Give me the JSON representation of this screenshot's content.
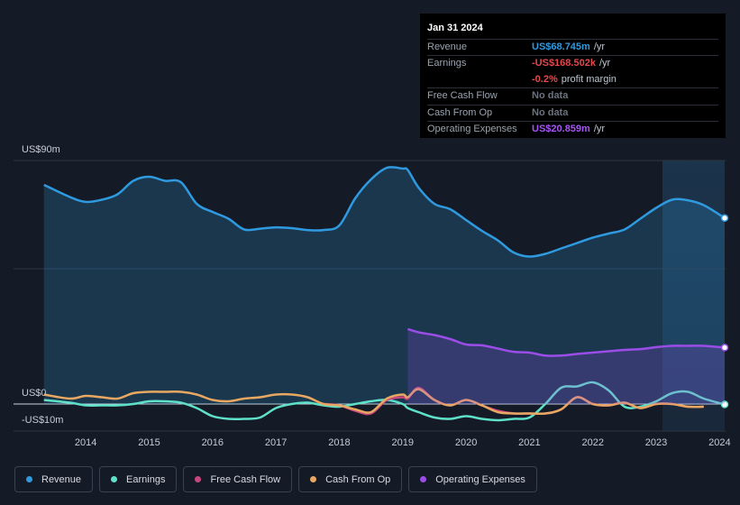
{
  "chart_data": {
    "type": "line",
    "x": [
      2013.34,
      2013.75,
      2014.0,
      2014.25,
      2014.5,
      2014.75,
      2015.0,
      2015.25,
      2015.5,
      2015.75,
      2016.0,
      2016.25,
      2016.5,
      2016.75,
      2017.0,
      2017.25,
      2017.5,
      2017.75,
      2018.0,
      2018.25,
      2018.5,
      2018.75,
      2019.0,
      2019.08,
      2019.25,
      2019.5,
      2019.75,
      2020.0,
      2020.25,
      2020.5,
      2020.75,
      2021.0,
      2021.25,
      2021.5,
      2021.75,
      2022.0,
      2022.25,
      2022.5,
      2022.75,
      2023.0,
      2023.25,
      2023.5,
      2023.75,
      2024.08
    ],
    "series": [
      {
        "name": "Revenue",
        "color": "#2f9ae0",
        "area": true,
        "values": [
          81,
          76.5,
          74.7,
          75.5,
          77.5,
          82.5,
          84,
          82.5,
          82,
          74,
          71,
          68.5,
          64.5,
          64.8,
          65.3,
          65,
          64.3,
          64.3,
          66,
          76,
          83,
          87.3,
          87,
          86.5,
          80,
          74,
          72,
          68,
          64,
          60.5,
          56,
          54.5,
          55.5,
          57.5,
          59.5,
          61.5,
          63,
          64.5,
          68.5,
          72.5,
          75.5,
          75.3,
          73.5,
          68.745
        ]
      },
      {
        "name": "Earnings",
        "color": "#5fe0c8",
        "area": false,
        "values": [
          1.5,
          0.5,
          -0.5,
          -0.5,
          -0.5,
          0,
          1,
          1,
          0.5,
          -1.5,
          -4.5,
          -5.5,
          -5.5,
          -5,
          -1.5,
          0,
          0.5,
          -0.5,
          -1,
          0,
          1,
          1.5,
          0,
          -1.5,
          -3,
          -5,
          -5.5,
          -4.5,
          -5.5,
          -6,
          -5.5,
          -5,
          0,
          6,
          6.5,
          8,
          5,
          -1,
          -1,
          1,
          4,
          4.5,
          2,
          -0.168502
        ]
      },
      {
        "name": "Free Cash Flow",
        "color": "#c9457d",
        "area": false,
        "values": [
          null,
          null,
          null,
          null,
          null,
          null,
          null,
          null,
          null,
          null,
          null,
          null,
          null,
          null,
          null,
          null,
          null,
          0,
          -0.5,
          -2.5,
          -3.5,
          1.5,
          2.5,
          2,
          6,
          1.5,
          -0.5,
          1.5,
          -0.5,
          -2.5,
          -3.5,
          -3.5,
          -3.5,
          -2,
          2.5,
          0,
          -0.5,
          0.5,
          -1.5,
          0,
          0,
          -1,
          -1,
          null
        ]
      },
      {
        "name": "Cash From Op",
        "color": "#e8a862",
        "area": false,
        "values": [
          3.5,
          2,
          3,
          2.5,
          2,
          4,
          4.5,
          4.5,
          4.5,
          3.5,
          1.5,
          1,
          2,
          2.5,
          3.5,
          3.5,
          2.5,
          0,
          -0.5,
          -2,
          -3,
          2,
          3.5,
          2.5,
          5.5,
          1.5,
          -0.5,
          1.5,
          -0.5,
          -3,
          -3.5,
          -3.5,
          -3.5,
          -2,
          2.5,
          0,
          -0.5,
          0.5,
          -1.5,
          0,
          0,
          -1,
          -1,
          null
        ]
      },
      {
        "name": "Operating Expenses",
        "color": "#9b4de8",
        "area": true,
        "values": [
          null,
          null,
          null,
          null,
          null,
          null,
          null,
          null,
          null,
          null,
          null,
          null,
          null,
          null,
          null,
          null,
          null,
          null,
          null,
          null,
          null,
          null,
          null,
          27.7,
          26.5,
          25.5,
          24,
          22,
          21.7,
          20.5,
          19.3,
          19,
          17.9,
          17.9,
          18.5,
          19,
          19.5,
          20,
          20.3,
          21,
          21.5,
          21.5,
          21.5,
          20.859
        ]
      }
    ],
    "xlim": [
      2012.86,
      2024.08
    ],
    "xticks": [
      2014,
      2015,
      2016,
      2017,
      2018,
      2019,
      2020,
      2021,
      2022,
      2023,
      2024
    ],
    "ylim": [
      -10,
      90
    ],
    "yticks": [
      {
        "value": -10,
        "label": "-US$10m"
      },
      {
        "value": 0,
        "label": "US$0"
      },
      {
        "value": 90,
        "label": "US$90m"
      }
    ]
  },
  "tooltip": {
    "date": "Jan 31 2024",
    "rows": [
      {
        "label": "Revenue",
        "value": "US$68.745m",
        "unit": "/yr",
        "color": "#2f9ae0"
      },
      {
        "label": "Earnings",
        "value": "-US$168.502k",
        "unit": "/yr",
        "color": "#e5484d"
      },
      {
        "value": "-0.2%",
        "unit": "profit margin",
        "color": "#e5484d"
      },
      {
        "label": "Free Cash Flow",
        "value": "No data",
        "color": "#6b7280"
      },
      {
        "label": "Cash From Op",
        "value": "No data",
        "color": "#6b7280"
      },
      {
        "label": "Operating Expenses",
        "value": "US$20.859m",
        "unit": "/yr",
        "color": "#a855f7"
      }
    ]
  }
}
